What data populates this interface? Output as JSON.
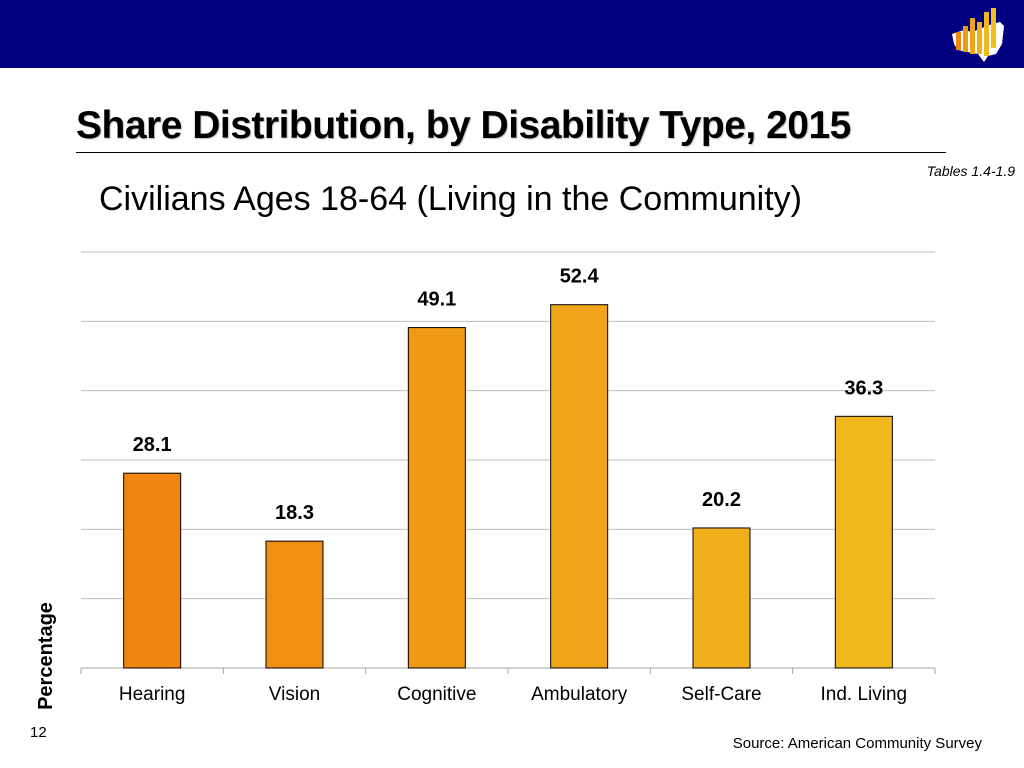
{
  "header": {
    "bar_color": "#000080",
    "logo_icon": "us-map-bar-chart-logo-icon"
  },
  "slide": {
    "title": "Share Distribution, by Disability Type, 2015",
    "tables_ref": "Tables 1.4-1.9",
    "subtitle": "Civilians Ages 18-64 (Living in the Community)",
    "page_number": "12",
    "source": "Source: American Community Survey"
  },
  "chart_data": {
    "type": "bar",
    "title": "Share Distribution, by Disability Type, 2015",
    "subtitle": "Civilians Ages 18-64 (Living in the Community)",
    "xlabel": "",
    "ylabel": "Percentage",
    "ylim": [
      0,
      60
    ],
    "gridlines": [
      0,
      10,
      20,
      30,
      40,
      50,
      60
    ],
    "grid": true,
    "tick_labels_shown": false,
    "categories": [
      "Hearing",
      "Vision",
      "Cognitive",
      "Ambulatory",
      "Self-Care",
      "Ind. Living"
    ],
    "values": [
      28.1,
      18.3,
      49.1,
      52.4,
      20.2,
      36.3
    ],
    "value_labels": [
      "28.1",
      "18.3",
      "49.1",
      "52.4",
      "20.2",
      "36.3"
    ],
    "bar_colors": [
      "#F0860F",
      "#F08F12",
      "#F09A14",
      "#F0A418",
      "#F0AE1A",
      "#F0B81D"
    ]
  }
}
